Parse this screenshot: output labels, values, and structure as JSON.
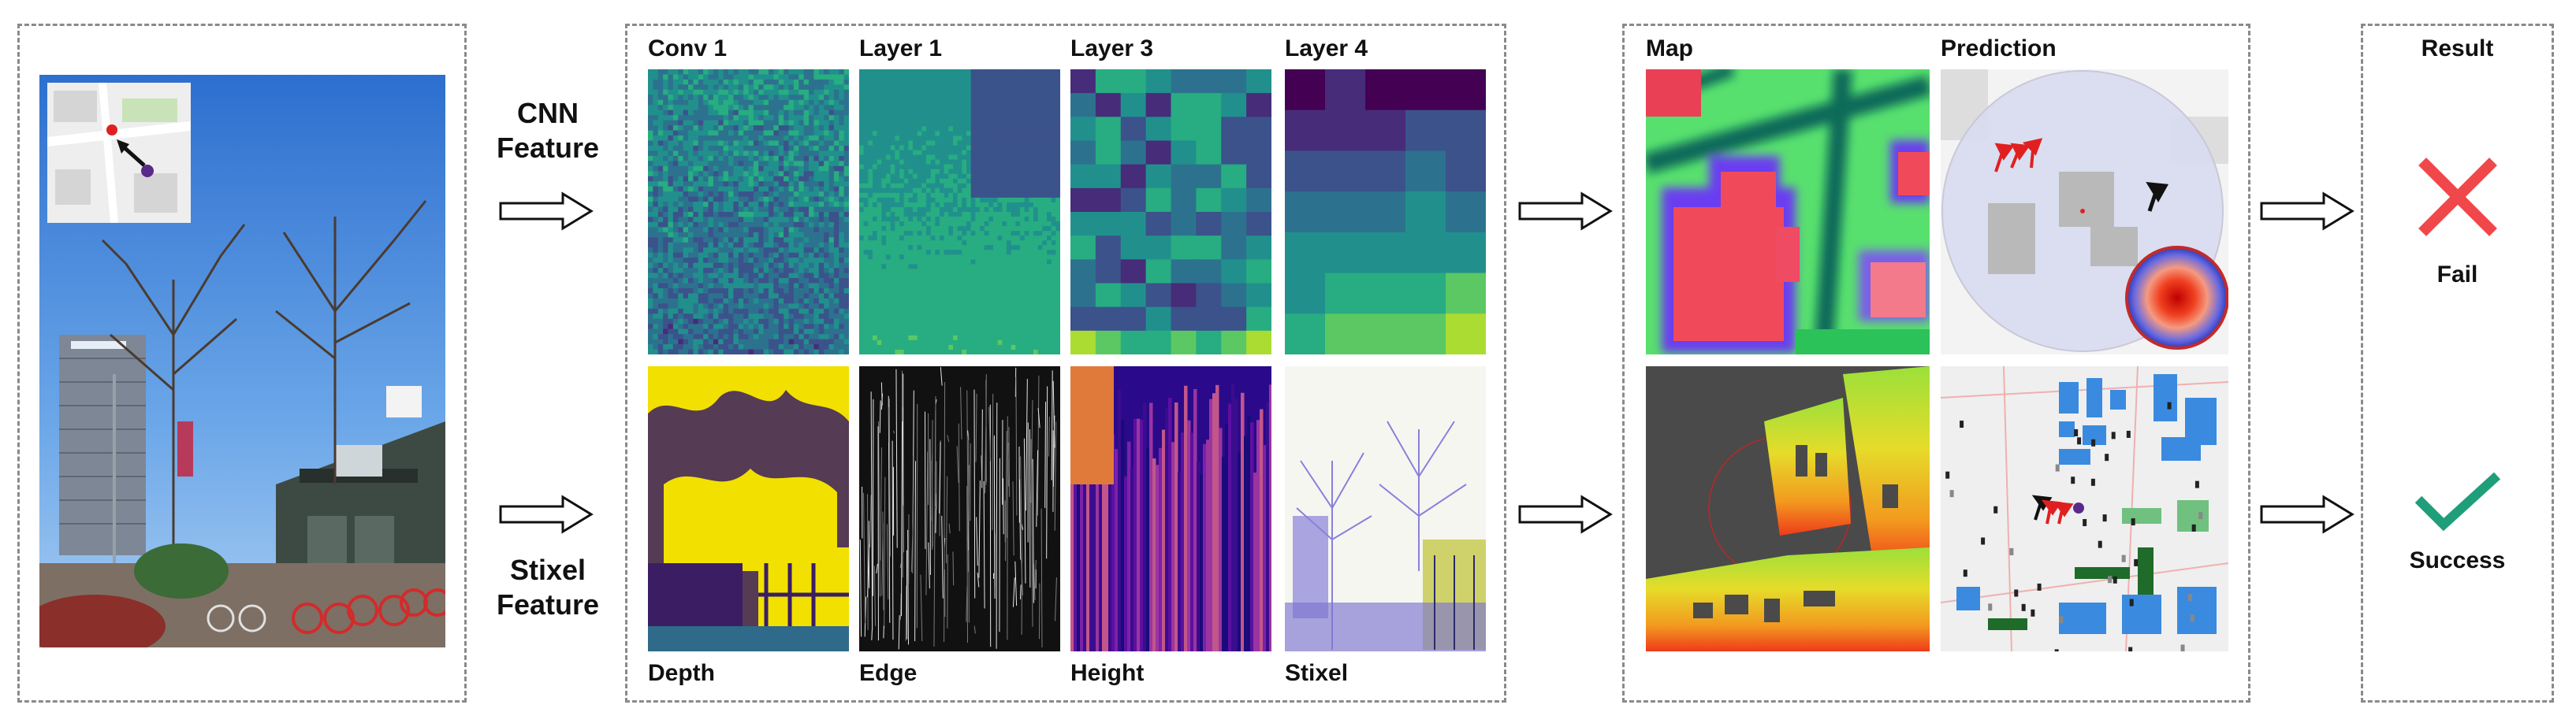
{
  "rows": {
    "cnn": {
      "line1": "CNN",
      "line2": "Feature"
    },
    "stixel": {
      "line1": "Stixel",
      "line2": "Feature"
    }
  },
  "cnn_layers": [
    "Conv 1",
    "Layer 1",
    "Layer 3",
    "Layer 4"
  ],
  "stixel_layers": [
    "Depth",
    "Edge",
    "Height",
    "Stixel"
  ],
  "map_section": {
    "map": "Map",
    "prediction": "Prediction"
  },
  "result_section": {
    "title": "Result",
    "fail": "Fail",
    "success": "Success"
  },
  "colors": {
    "fail": "#f0484a",
    "success": "#1f9e7a",
    "box_border": "#8a8a8a",
    "pred_arrow_red": "#e02020"
  },
  "icons": {
    "fail": "cross-icon",
    "success": "check-icon",
    "arrow": "hollow-right-arrow-icon"
  }
}
